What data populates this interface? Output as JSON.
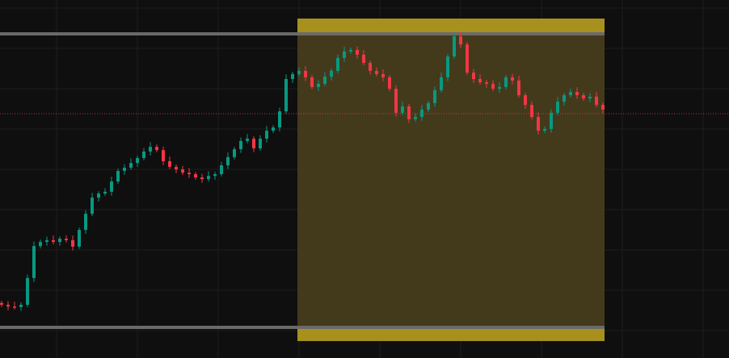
{
  "chart_data": {
    "type": "candlestick",
    "title": "",
    "xlabel": "",
    "ylabel": "",
    "ylim": [
      -5,
      115
    ],
    "grid": true,
    "colors": {
      "background": "#0f0f0f",
      "up": "#089981",
      "down": "#f23645",
      "zone_fill": "#433a1c",
      "zone_edge": "#a8901f",
      "level_line": "#6a6a6a",
      "last_price_line": "#f23645"
    },
    "range_levels": {
      "high": 100,
      "low": 0
    },
    "highlight_zone": {
      "start_index": 46,
      "end_index": 93
    },
    "last_price": 72.8,
    "closes": [
      7.7,
      7.1,
      6.9,
      7.7,
      16.8,
      27.7,
      29.1,
      29.7,
      29.1,
      30.2,
      29.7,
      27.5,
      33.2,
      38.7,
      44.2,
      45.6,
      46.2,
      49.7,
      53.3,
      54.4,
      56.0,
      57.7,
      59.9,
      61.5,
      60.4,
      56.6,
      54.7,
      53.8,
      52.7,
      52.2,
      51.1,
      50.5,
      51.6,
      52.2,
      55.2,
      58.0,
      60.7,
      63.5,
      64.3,
      61.0,
      64.3,
      67.0,
      68.1,
      73.6,
      84.6,
      86.3,
      87.4,
      85.2,
      81.9,
      83.0,
      85.4,
      87.4,
      91.8,
      94.0,
      94.5,
      92.9,
      90.1,
      87.4,
      86.3,
      85.2,
      81.3,
      73.1,
      75.3,
      70.9,
      71.7,
      74.2,
      76.4,
      80.8,
      85.2,
      92.3,
      99.2,
      96.4,
      86.8,
      84.6,
      83.5,
      83.0,
      81.3,
      81.9,
      85.2,
      84.1,
      79.1,
      75.8,
      71.7,
      67.0,
      67.6,
      73.1,
      76.9,
      79.1,
      80.2,
      79.1,
      78.0,
      78.6,
      75.8,
      74.2
    ]
  }
}
